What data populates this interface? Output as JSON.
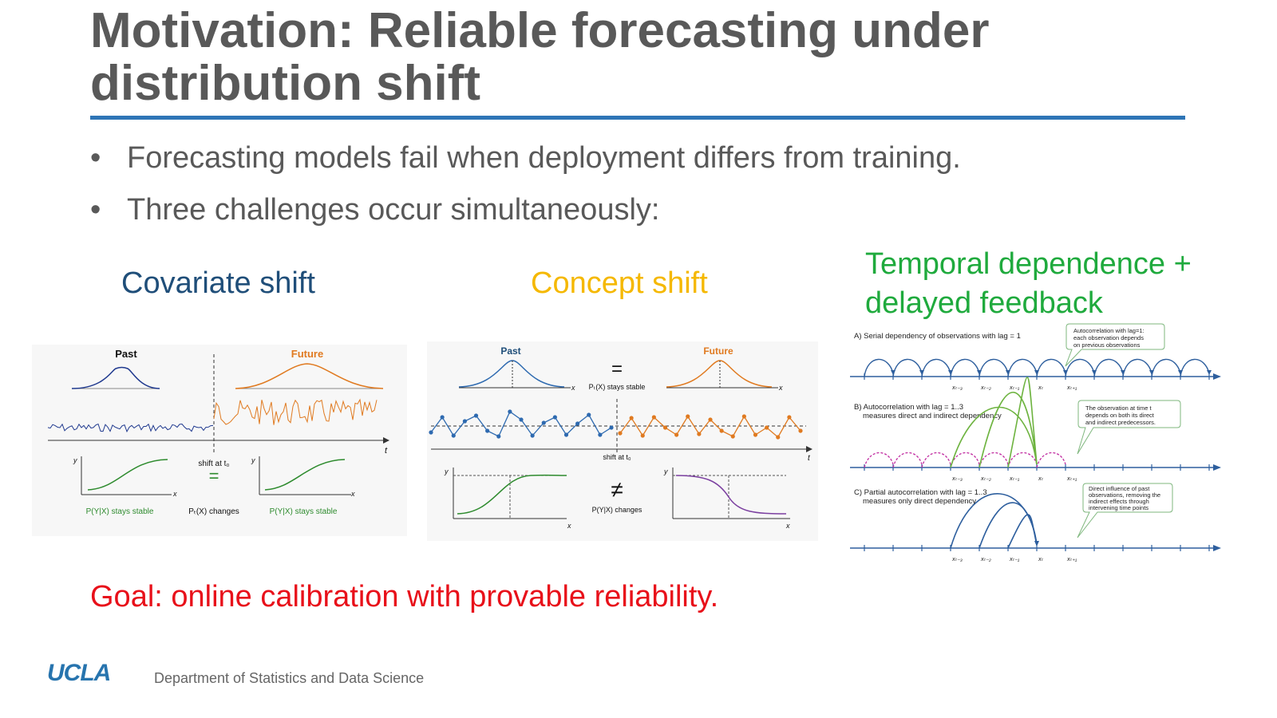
{
  "slide": {
    "title": "Motivation: Reliable forecasting under distribution shift",
    "bullets": [
      "Forecasting models fail when deployment differs from training.",
      "Three challenges occur simultaneously:"
    ],
    "goal": "Goal: online calibration with provable reliability.",
    "colors": {
      "title": "#595959",
      "rule": "#2e75b6",
      "covariate": "#1f4e79",
      "concept": "#f5b800",
      "temporal": "#1faa3d",
      "goal": "#e8101a"
    }
  },
  "headings": {
    "covariate": "Covariate shift",
    "concept": "Concept shift",
    "temporal_line1": "Temporal dependence +",
    "temporal_line2": "delayed feedback"
  },
  "covariate_fig": {
    "past": "Past",
    "future": "Future",
    "t_label": "t",
    "shift": "shift at t₀",
    "y": "y",
    "x": "x",
    "eq": "=",
    "stable_left": "P(Y|X) stays stable",
    "changes": "Pₜ(X) changes",
    "stable_right": "P(Y|X) stays stable"
  },
  "concept_fig": {
    "past": "Past",
    "future": "Future",
    "eq": "=",
    "px_stable": "Pₜ(X) stays stable",
    "x": "x",
    "t_label": "t",
    "shift": "shift at t₀",
    "y": "y",
    "neq": "≠",
    "pyx_changes": "P(Y|X) changes"
  },
  "temporal_fig": {
    "a_label": "A) Serial dependency of observations with lag = 1",
    "a_callout": [
      "Autocorrelation with lag=1:",
      "each observation depends",
      "on previous observations"
    ],
    "b_label": [
      "B) Autocorrelation with lag = 1..3",
      "measures direct and indirect dependency"
    ],
    "b_callout": [
      "The observation at time t",
      "depends on both its direct",
      "and indirect predecessors."
    ],
    "c_label": [
      "C) Partial autocorrelation with lag = 1..3",
      "measures only direct dependency"
    ],
    "c_callout": [
      "Direct influence of past",
      "observations, removing the",
      "indirect effects through",
      "intervening time points"
    ],
    "ticks": [
      "xₜ₋₃",
      "xₜ₋₂",
      "xₜ₋₁",
      "xₜ",
      "xₜ₊₁"
    ]
  },
  "footer": {
    "logo": "UCLA",
    "department": "Department of Statistics and Data Science"
  }
}
